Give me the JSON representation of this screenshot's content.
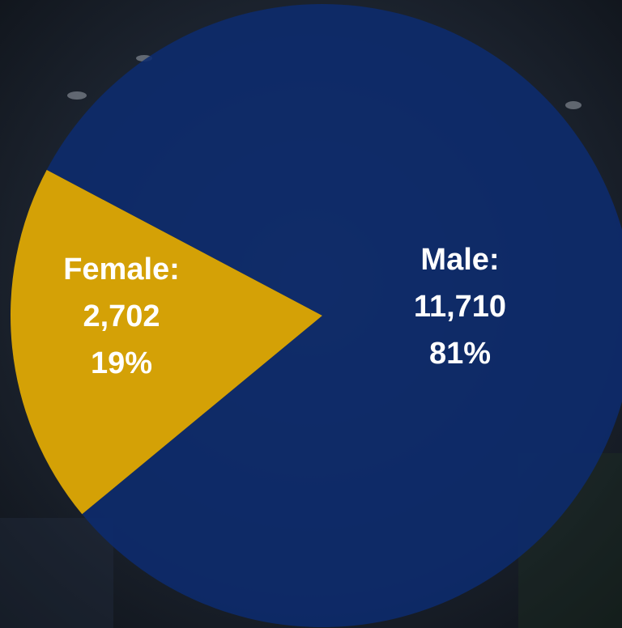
{
  "chart_data": {
    "type": "pie",
    "categories": [
      "Female:",
      "Male:"
    ],
    "values": [
      2702,
      11710
    ],
    "value_labels": [
      "2,702",
      "11,710"
    ],
    "percent_values": [
      19,
      81
    ],
    "percent_labels": [
      "19%",
      "81%"
    ],
    "colors": [
      "#d4a106",
      "#0c2b6e"
    ]
  }
}
